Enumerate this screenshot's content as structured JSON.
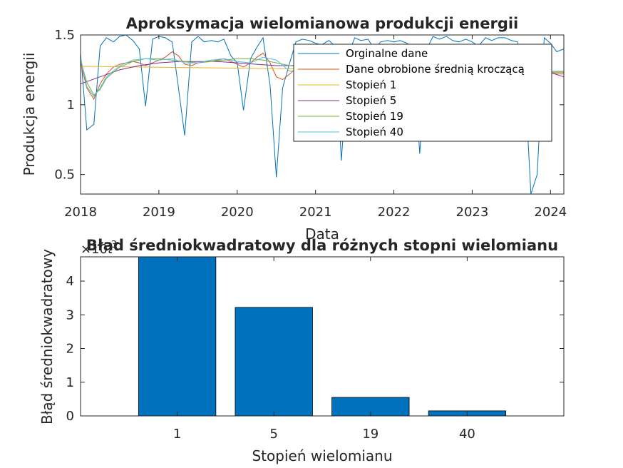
{
  "chart_data": [
    {
      "type": "line",
      "title": "Aproksymacja wielomianowa produkcji energii",
      "xlabel": "Data",
      "ylabel": "Produkcja energii",
      "xlim": [
        2018.0,
        2024.17
      ],
      "ylim": [
        0.36,
        1.5
      ],
      "xticks": [
        "2018",
        "2019",
        "2020",
        "2021",
        "2022",
        "2023",
        "2024"
      ],
      "yticks": [
        "0.5",
        "1",
        "1.5"
      ],
      "legend": "top-right",
      "grid": false,
      "series": [
        {
          "name": "Orginalne dane",
          "color": "#0072BD",
          "x": [
            2018.0,
            2018.08,
            2018.17,
            2018.25,
            2018.33,
            2018.42,
            2018.5,
            2018.58,
            2018.67,
            2018.75,
            2018.83,
            2018.92,
            2019.0,
            2019.08,
            2019.17,
            2019.25,
            2019.33,
            2019.42,
            2019.5,
            2019.58,
            2019.67,
            2019.75,
            2019.83,
            2019.92,
            2020.0,
            2020.08,
            2020.17,
            2020.25,
            2020.33,
            2020.42,
            2020.5,
            2020.58,
            2020.67,
            2020.75,
            2020.83,
            2020.92,
            2021.0,
            2021.08,
            2021.17,
            2021.25,
            2021.33,
            2021.42,
            2021.5,
            2021.58,
            2021.67,
            2021.75,
            2021.83,
            2021.92,
            2022.0,
            2022.08,
            2022.17,
            2022.25,
            2022.33,
            2022.42,
            2022.5,
            2022.58,
            2022.67,
            2022.75,
            2022.83,
            2022.92,
            2023.0,
            2023.08,
            2023.17,
            2023.25,
            2023.33,
            2023.42,
            2023.5,
            2023.58,
            2023.67,
            2023.75,
            2023.83,
            2023.92,
            2024.0,
            2024.08,
            2024.17
          ],
          "values": [
            1.37,
            0.82,
            0.86,
            1.42,
            1.48,
            1.45,
            1.49,
            1.5,
            1.46,
            1.4,
            0.99,
            1.47,
            1.49,
            1.48,
            1.45,
            1.12,
            0.78,
            1.45,
            1.49,
            1.45,
            1.46,
            1.45,
            1.47,
            1.35,
            1.3,
            0.96,
            1.33,
            1.41,
            1.48,
            1.14,
            0.48,
            1.12,
            1.3,
            1.45,
            1.47,
            1.46,
            1.44,
            1.43,
            1.46,
            1.42,
            0.6,
            1.36,
            1.48,
            1.46,
            1.47,
            1.4,
            1.45,
            1.46,
            1.45,
            1.46,
            1.44,
            1.4,
            0.65,
            1.4,
            1.49,
            1.47,
            1.49,
            1.46,
            1.45,
            1.47,
            1.45,
            1.42,
            1.48,
            1.46,
            1.48,
            1.48,
            1.46,
            1.45,
            1.2,
            0.36,
            0.5,
            1.48,
            1.44,
            1.38,
            1.4
          ]
        },
        {
          "name": "Dane obrobione średnią kroczącą",
          "color": "#D95319",
          "x": [
            2018.0,
            2018.08,
            2018.17,
            2018.25,
            2018.33,
            2018.42,
            2018.5,
            2018.58,
            2018.67,
            2018.75,
            2018.83,
            2018.92,
            2019.0,
            2019.08,
            2019.17,
            2019.25,
            2019.33,
            2019.42,
            2019.5,
            2019.58,
            2019.67,
            2019.75,
            2019.83,
            2019.92,
            2020.0,
            2020.08,
            2020.17,
            2020.25,
            2020.33,
            2020.42,
            2020.5,
            2020.58,
            2020.67,
            2020.75,
            2020.83,
            2020.92,
            2021.0,
            2021.08,
            2021.17,
            2021.25,
            2021.33,
            2021.42,
            2021.5,
            2021.58,
            2021.67,
            2021.75,
            2021.83,
            2021.92,
            2022.0,
            2022.08,
            2022.17,
            2022.25,
            2022.33,
            2022.42,
            2022.5,
            2022.58,
            2022.67,
            2022.75,
            2022.83,
            2022.92,
            2023.0,
            2023.08,
            2023.17,
            2023.25,
            2023.33,
            2023.42,
            2023.5,
            2023.58,
            2023.67,
            2023.75,
            2023.83,
            2023.92,
            2024.0,
            2024.08,
            2024.17
          ],
          "values": [
            1.3,
            1.12,
            1.04,
            1.15,
            1.22,
            1.27,
            1.29,
            1.3,
            1.31,
            1.3,
            1.28,
            1.3,
            1.32,
            1.34,
            1.38,
            1.35,
            1.29,
            1.28,
            1.3,
            1.31,
            1.32,
            1.32,
            1.33,
            1.31,
            1.29,
            1.27,
            1.3,
            1.34,
            1.37,
            1.3,
            1.2,
            1.18,
            1.22,
            1.26,
            1.29,
            1.3,
            1.31,
            1.3,
            1.3,
            1.28,
            1.2,
            1.22,
            1.27,
            1.3,
            1.31,
            1.3,
            1.31,
            1.31,
            1.3,
            1.3,
            1.3,
            1.28,
            1.2,
            1.23,
            1.28,
            1.31,
            1.32,
            1.31,
            1.3,
            1.3,
            1.3,
            1.29,
            1.3,
            1.3,
            1.31,
            1.31,
            1.3,
            1.29,
            1.25,
            1.15,
            1.13,
            1.2,
            1.23,
            1.22,
            1.22
          ]
        },
        {
          "name": "Stopień 1",
          "color": "#EDB120",
          "x": [
            2018.0,
            2024.17
          ],
          "values": [
            1.275,
            1.235
          ]
        },
        {
          "name": "Stopień 5",
          "color": "#7E2F8E",
          "x": [
            2018.0,
            2018.25,
            2018.5,
            2018.75,
            2019.0,
            2019.25,
            2019.5,
            2019.75,
            2020.0,
            2020.25,
            2020.5,
            2020.75,
            2021.0,
            2021.25,
            2021.5,
            2021.75,
            2022.0,
            2022.25,
            2022.5,
            2022.75,
            2023.0,
            2023.25,
            2023.5,
            2023.75,
            2024.0,
            2024.17
          ],
          "values": [
            1.15,
            1.2,
            1.25,
            1.28,
            1.3,
            1.31,
            1.31,
            1.31,
            1.3,
            1.29,
            1.28,
            1.28,
            1.27,
            1.27,
            1.27,
            1.28,
            1.28,
            1.29,
            1.29,
            1.3,
            1.3,
            1.29,
            1.28,
            1.26,
            1.23,
            1.2
          ]
        },
        {
          "name": "Stopień 19",
          "color": "#77AC30",
          "x": [
            2018.0,
            2018.08,
            2018.17,
            2018.25,
            2018.33,
            2018.5,
            2018.67,
            2018.83,
            2019.0,
            2019.17,
            2019.33,
            2019.5,
            2019.67,
            2019.83,
            2020.0,
            2020.17,
            2020.33,
            2020.5,
            2020.67,
            2020.83,
            2021.0,
            2021.25,
            2021.5,
            2021.75,
            2022.0,
            2022.25,
            2022.5,
            2022.75,
            2023.0,
            2023.25,
            2023.5,
            2023.75,
            2024.0,
            2024.17
          ],
          "values": [
            1.32,
            1.16,
            1.07,
            1.11,
            1.19,
            1.27,
            1.31,
            1.33,
            1.33,
            1.32,
            1.31,
            1.3,
            1.31,
            1.32,
            1.33,
            1.33,
            1.32,
            1.3,
            1.28,
            1.27,
            1.27,
            1.27,
            1.28,
            1.29,
            1.29,
            1.28,
            1.27,
            1.28,
            1.29,
            1.3,
            1.29,
            1.26,
            1.23,
            1.23
          ]
        },
        {
          "name": "Stopień 40",
          "color": "#4DBEEE",
          "x": [
            2018.0,
            2018.08,
            2018.17,
            2018.25,
            2018.33,
            2018.5,
            2018.67,
            2018.83,
            2019.0,
            2019.17,
            2019.33,
            2019.5,
            2019.67,
            2019.83,
            2020.0,
            2020.17,
            2020.33,
            2020.5,
            2020.67,
            2020.83,
            2021.0,
            2021.25,
            2021.5,
            2021.75,
            2022.0,
            2022.25,
            2022.5,
            2022.75,
            2023.0,
            2023.25,
            2023.5,
            2023.75,
            2024.0,
            2024.17
          ],
          "values": [
            1.34,
            1.13,
            1.06,
            1.12,
            1.2,
            1.28,
            1.32,
            1.33,
            1.32,
            1.33,
            1.3,
            1.3,
            1.32,
            1.33,
            1.31,
            1.3,
            1.34,
            1.32,
            1.24,
            1.25,
            1.28,
            1.26,
            1.26,
            1.3,
            1.29,
            1.27,
            1.26,
            1.29,
            1.3,
            1.29,
            1.3,
            1.25,
            1.24,
            1.24
          ]
        }
      ]
    },
    {
      "type": "bar",
      "title": "Błąd średniokwadratowy dla różnych stopni wielomianu",
      "xlabel": "Stopień wielomianu",
      "ylabel": "Błąd średniokwadratowy",
      "exponent_label": "×10",
      "exponent_power": "-3",
      "categories": [
        "1",
        "5",
        "19",
        "40"
      ],
      "values": [
        4.72,
        3.22,
        0.55,
        0.15
      ],
      "ylim": [
        0,
        4.72
      ],
      "yticks": [
        "0",
        "1",
        "2",
        "3",
        "4"
      ],
      "color": "#0072BD",
      "grid": false
    }
  ]
}
